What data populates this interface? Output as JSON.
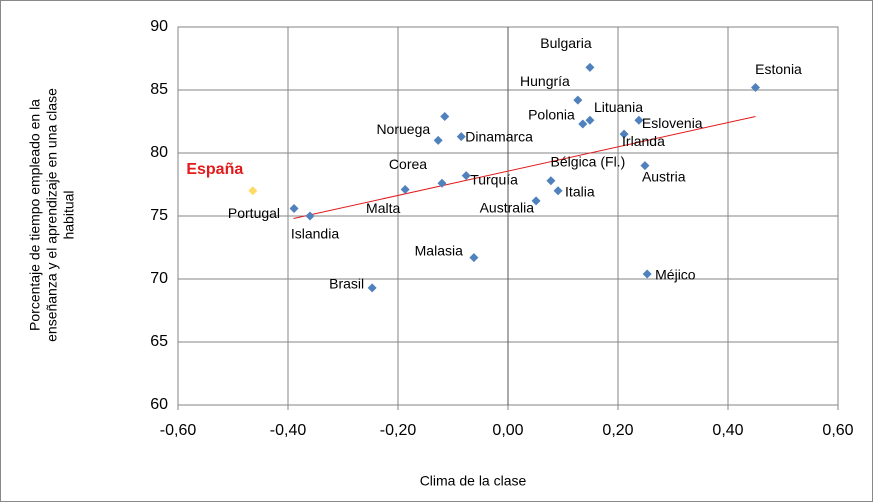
{
  "chart_data": {
    "type": "scatter",
    "xlabel": "Clima de la clase",
    "ylabel": [
      "Porcentaje de tiempo empleado en la",
      "enseñanza y el aprendizaje en una clase",
      "habitual"
    ],
    "xlim": [
      -0.6,
      0.6
    ],
    "ylim": [
      60,
      90
    ],
    "xticks": [
      {
        "value": -0.6,
        "label": "-0,60"
      },
      {
        "value": -0.4,
        "label": "-0,40"
      },
      {
        "value": -0.2,
        "label": "-0,20"
      },
      {
        "value": 0,
        "label": "0,00"
      },
      {
        "value": 0.2,
        "label": "0,20"
      },
      {
        "value": 0.4,
        "label": "0,40"
      },
      {
        "value": 0.6,
        "label": "0,60"
      }
    ],
    "yticks": [
      60,
      65,
      70,
      75,
      80,
      85,
      90
    ],
    "grid": true,
    "color": "#4f81bd",
    "highlight_color": "#ffd966",
    "highlight_label_color": "#e31a1c",
    "highlight": 0,
    "categories": [
      "España",
      "Portugal",
      "Islandia",
      "Brasil",
      "Malta",
      "Corea",
      "Noruega",
      null,
      "Dinamarca",
      "Turquía",
      "Malasia",
      "Australia",
      "Bélgica (Fl.)",
      "Italia",
      "Hungría",
      "Bulgaria",
      "Polonia",
      "Lituania",
      "Irlanda",
      "Eslovenia",
      "Austria",
      "Méjico",
      "Estonia"
    ],
    "x": [
      -0.464,
      -0.389,
      -0.36,
      -0.247,
      -0.187,
      -0.12,
      -0.127,
      -0.115,
      -0.085,
      -0.076,
      -0.062,
      0.051,
      0.078,
      0.091,
      0.127,
      0.149,
      0.136,
      0.149,
      0.211,
      0.238,
      0.249,
      0.253,
      0.45
    ],
    "y": [
      77.0,
      75.6,
      75.0,
      69.3,
      77.1,
      77.6,
      81.0,
      82.9,
      81.3,
      78.2,
      71.7,
      76.2,
      77.8,
      77.0,
      84.2,
      86.8,
      82.3,
      82.6,
      81.5,
      82.6,
      79.0,
      70.4,
      85.2
    ],
    "trendline": {
      "color": "#e31a1c",
      "x": [
        -0.39,
        0.45
      ],
      "y": [
        74.8,
        82.9
      ]
    }
  }
}
